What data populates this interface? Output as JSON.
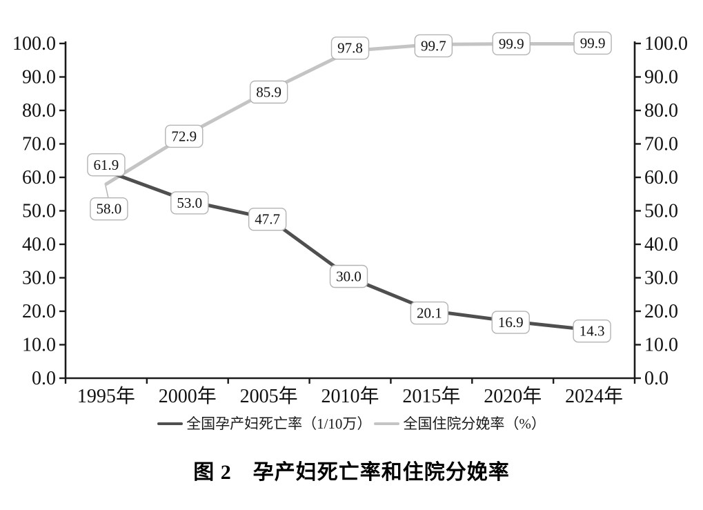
{
  "figure": {
    "caption": "图 2　孕产妇死亡率和住院分娩率"
  },
  "chart_data": {
    "type": "line",
    "title": "图 2　孕产妇死亡率和住院分娩率",
    "categories": [
      "1995年",
      "2000年",
      "2005年",
      "2010年",
      "2015年",
      "2020年",
      "2024年"
    ],
    "series": [
      {
        "name": "全国孕产妇死亡率（1/10万）",
        "values": [
          61.9,
          53.0,
          47.7,
          30.0,
          20.1,
          16.9,
          14.3
        ],
        "color": "#4f4f4f"
      },
      {
        "name": "全国住院分娩率（%）",
        "values": [
          58.0,
          72.9,
          85.9,
          97.8,
          99.7,
          99.9,
          99.9
        ],
        "color": "#c4c4c4"
      }
    ],
    "y_axis": {
      "min": 0,
      "max": 100,
      "step": 10,
      "tick_labels": [
        "0.0",
        "10.0",
        "20.0",
        "30.0",
        "40.0",
        "50.0",
        "60.0",
        "70.0",
        "80.0",
        "90.0",
        "100.0"
      ],
      "dual_axis": true
    },
    "data_labels": true,
    "data_label_style": {
      "box_fill": "#ffffff",
      "box_border": "#b3b3b3",
      "text_color": "#1a1a1a"
    },
    "axis_color": "#1a1a1a",
    "legend_position": "bottom",
    "grid": false
  }
}
